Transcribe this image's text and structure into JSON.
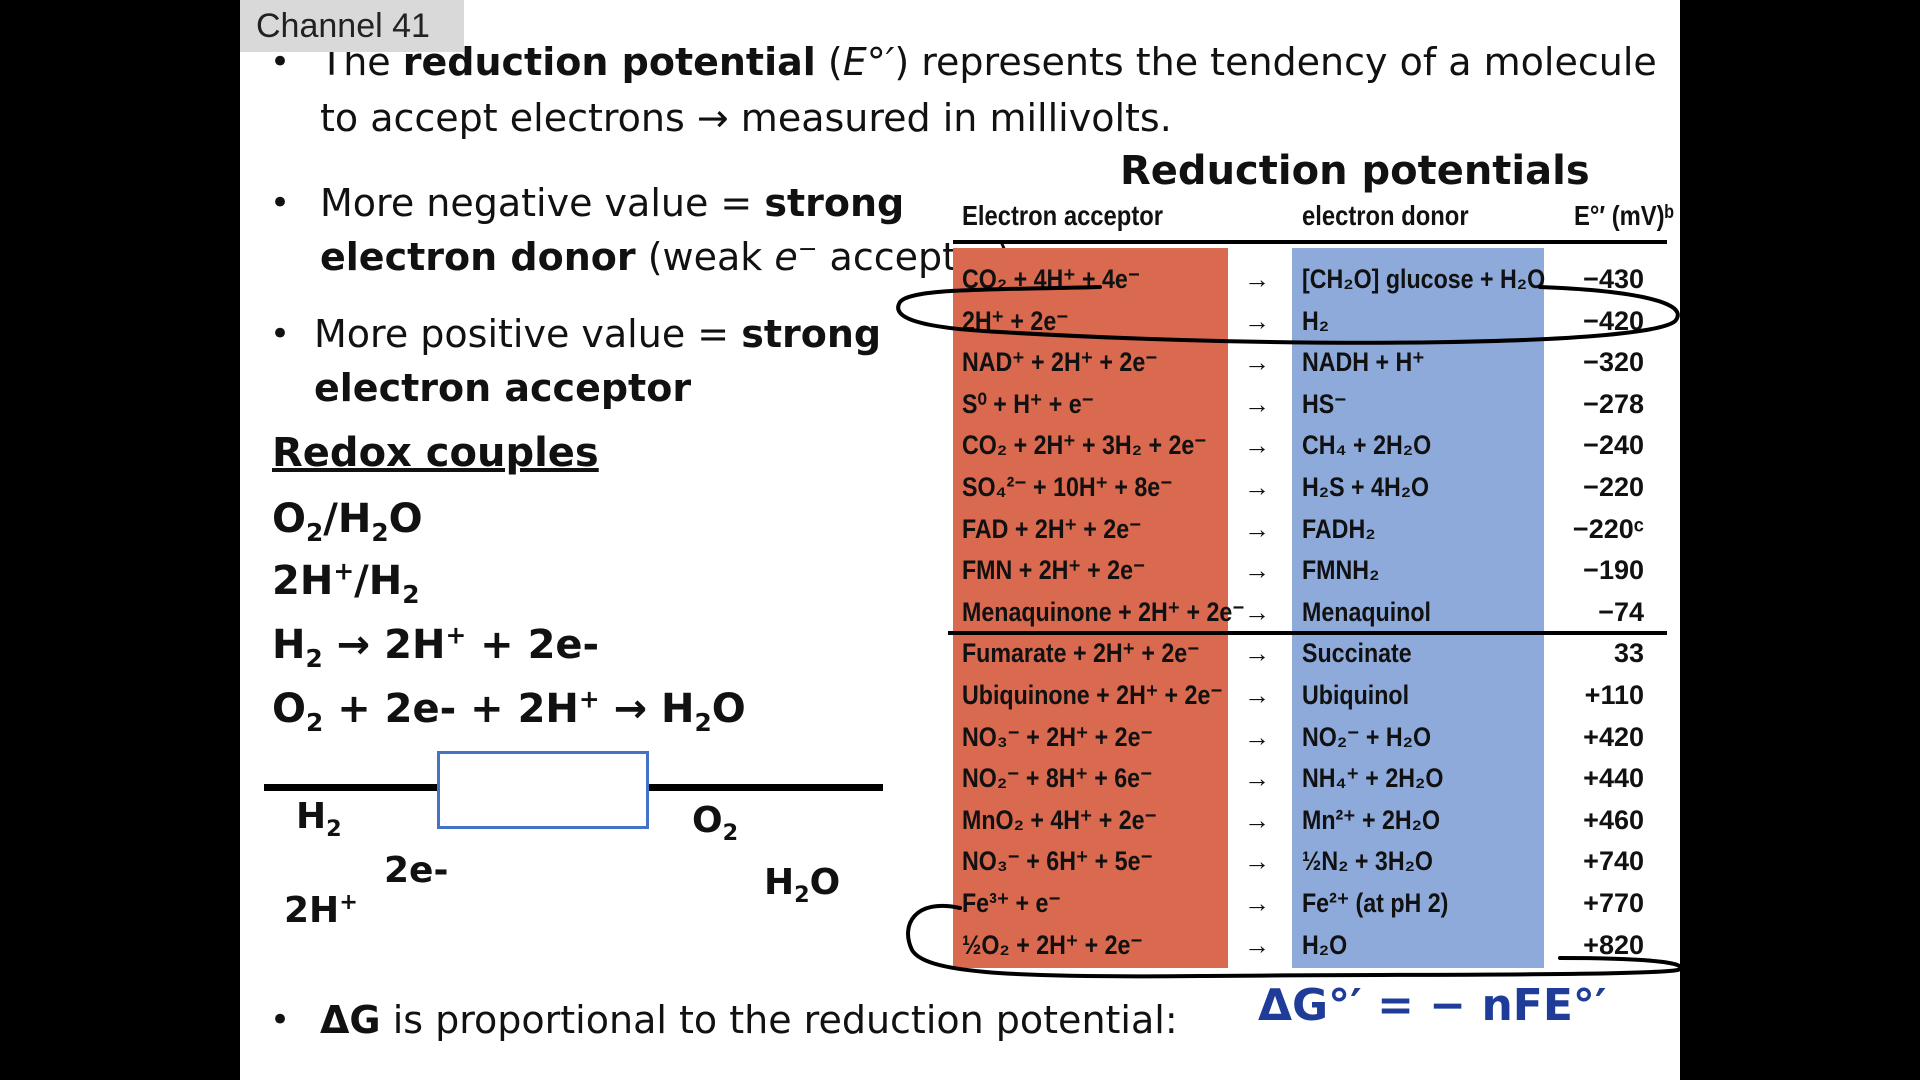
{
  "channel_label": "Channel 41",
  "bullets": {
    "b1_pre": "The ",
    "b1_bold": "reduction potential",
    "b1_mid": " (",
    "b1_symbol": "E°′",
    "b1_post": ") represents the tendency of a molecule",
    "b1_line2": "to accept electrons → measured in millivolts.",
    "b2_pre": "More negative value = ",
    "b2_bold1": "strong",
    "b2_bold2": "electron donor",
    "b2_post_a": " (weak ",
    "b2_e": "e",
    "b2_sup": "−",
    "b2_post_b": " acceptor)",
    "b3_pre": "More positive value = ",
    "b3_bold1": "strong",
    "b3_bold2": "electron acceptor",
    "b4_bold": "ΔG",
    "b4_text": " is proportional to the reduction potential:",
    "bullet_symbol": "•"
  },
  "redox": {
    "title": "Redox couples",
    "line1_a": "O",
    "line1_sub1": "2",
    "line1_b": "/H",
    "line1_sub2": "2",
    "line1_c": "O",
    "line2_a": "2H",
    "line2_sup": "+",
    "line2_b": "/H",
    "line2_sub": "2",
    "line3_a": "H",
    "line3_sub": "2",
    "line3_b": " → 2H",
    "line3_sup": "+",
    "line3_c": " + 2e-",
    "line4_a": "O",
    "line4_sub1": "2",
    "line4_b": " + 2e- + 2H",
    "line4_sup": "+",
    "line4_c": " → H",
    "line4_sub2": "2",
    "line4_d": "O"
  },
  "diagram": {
    "h2_a": "H",
    "h2_sub": "2",
    "two_e": "2e-",
    "two_h_a": "2H",
    "two_h_sup": "+",
    "o2_a": "O",
    "o2_sub": "2",
    "h2o_a": "H",
    "h2o_sub": "2",
    "h2o_b": "O"
  },
  "table": {
    "title": "Reduction potentials",
    "header_acceptor": "Electron acceptor",
    "header_donor": "electron donor",
    "header_value": "E°′ (mV)ᵇ",
    "arrow": "→",
    "rows": [
      {
        "acceptor": "CO₂ + 4H⁺ + 4e⁻",
        "donor": "[CH₂O] glucose + H₂O",
        "value": "−430"
      },
      {
        "acceptor": "2H⁺ + 2e⁻",
        "donor": "H₂",
        "value": "−420"
      },
      {
        "acceptor": "NAD⁺ + 2H⁺ + 2e⁻",
        "donor": "NADH + H⁺",
        "value": "−320"
      },
      {
        "acceptor": "S⁰ + H⁺ + e⁻",
        "donor": "HS⁻",
        "value": "−278"
      },
      {
        "acceptor": "CO₂ + 2H⁺ + 3H₂ + 2e⁻",
        "donor": "CH₄ + 2H₂O",
        "value": "−240"
      },
      {
        "acceptor": "SO₄²⁻ + 10H⁺ + 8e⁻",
        "donor": "H₂S + 4H₂O",
        "value": "−220"
      },
      {
        "acceptor": "FAD + 2H⁺ + 2e⁻",
        "donor": "FADH₂",
        "value": "−220ᶜ"
      },
      {
        "acceptor": "FMN + 2H⁺ + 2e⁻",
        "donor": "FMNH₂",
        "value": "−190"
      },
      {
        "acceptor": "Menaquinone + 2H⁺ + 2e⁻",
        "donor": "Menaquinol",
        "value": "−74"
      },
      {
        "acceptor": "Fumarate + 2H⁺ + 2e⁻",
        "donor": "Succinate",
        "value": "33"
      },
      {
        "acceptor": "Ubiquinone + 2H⁺ + 2e⁻",
        "donor": "Ubiquinol",
        "value": "+110"
      },
      {
        "acceptor": "NO₃⁻ + 2H⁺ + 2e⁻",
        "donor": "NO₂⁻ + H₂O",
        "value": "+420"
      },
      {
        "acceptor": "NO₂⁻ + 8H⁺ + 6e⁻",
        "donor": "NH₄⁺ + 2H₂O",
        "value": "+440"
      },
      {
        "acceptor": "MnO₂ + 4H⁺ + 2e⁻",
        "donor": "Mn²⁺ + 2H₂O",
        "value": "+460"
      },
      {
        "acceptor": "NO₃⁻ + 6H⁺ + 5e⁻",
        "donor": "½N₂ + 3H₂O",
        "value": "+740"
      },
      {
        "acceptor": "Fe³⁺ + e⁻",
        "donor": "Fe²⁺ (at pH 2)",
        "value": "+770"
      },
      {
        "acceptor": "½O₂ + 2H⁺ + 2e⁻",
        "donor": "H₂O",
        "value": "+820"
      }
    ]
  },
  "formula": "ΔG°′ = − nFE°′",
  "colors": {
    "acceptor_column": "#d9694f",
    "donor_column": "#8eaadb",
    "formula_color": "#1f3c99",
    "annotation_ink": "#000000"
  }
}
